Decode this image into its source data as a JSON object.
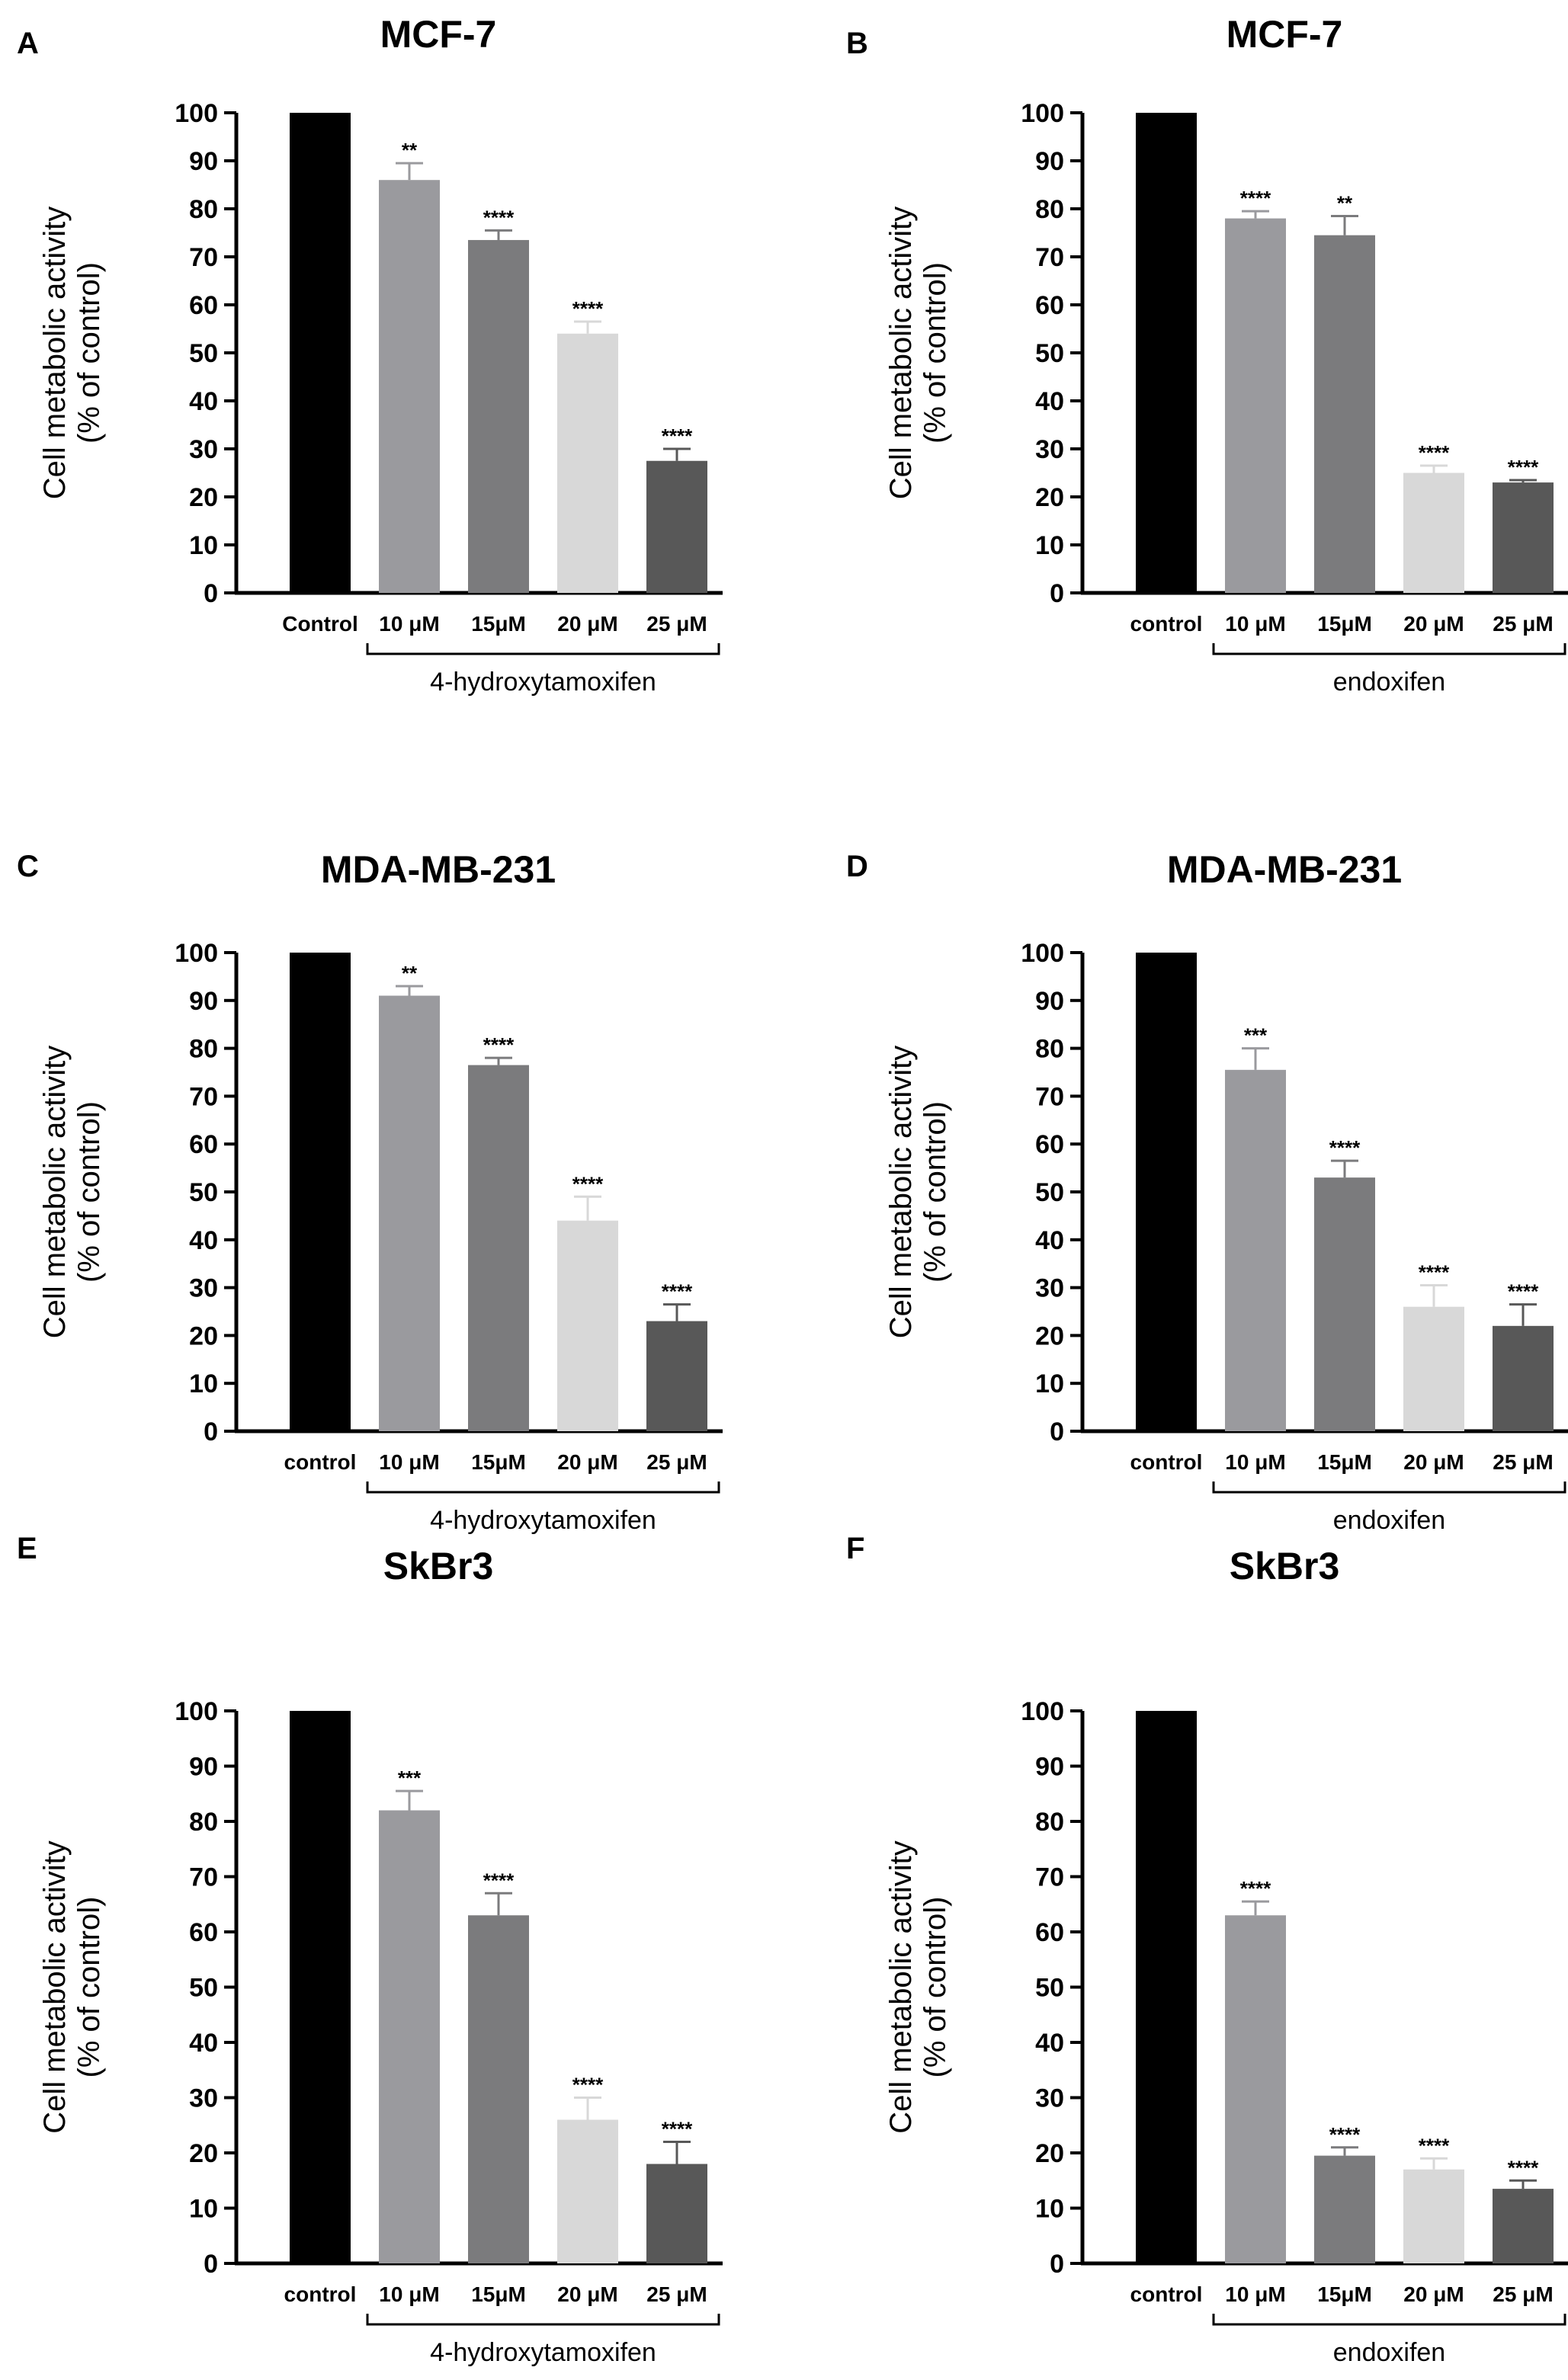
{
  "figure": {
    "y_label_line1": "Cell metabolic activity",
    "y_label_line2": "(% of control)"
  },
  "chart_data": [
    {
      "panel": "A",
      "type": "bar",
      "title": "MCF-7",
      "ylim": [
        0,
        100
      ],
      "yticks": [
        0,
        10,
        20,
        30,
        40,
        50,
        60,
        70,
        80,
        90,
        100
      ],
      "categories": [
        "Control",
        "10 μM",
        "15μM",
        "20 μM",
        "25 μM"
      ],
      "values": [
        100,
        86,
        73.5,
        54,
        27.5
      ],
      "errors": [
        0,
        3.5,
        2,
        2.5,
        2.5
      ],
      "significance": [
        "",
        "**",
        "****",
        "****",
        "****"
      ],
      "colors": [
        "#000000",
        "#9a9a9e",
        "#7b7b7d",
        "#d8d8d8",
        "#585858"
      ],
      "group_label": "4-hydroxytamoxifen"
    },
    {
      "panel": "B",
      "type": "bar",
      "title": "MCF-7",
      "ylim": [
        0,
        100
      ],
      "yticks": [
        0,
        10,
        20,
        30,
        40,
        50,
        60,
        70,
        80,
        90,
        100
      ],
      "categories": [
        "control",
        "10 μM",
        "15μM",
        "20 μM",
        "25 μM"
      ],
      "values": [
        100,
        78,
        74.5,
        25,
        23
      ],
      "errors": [
        0,
        1.5,
        4,
        1.5,
        0.5
      ],
      "significance": [
        "",
        "****",
        "**",
        "****",
        "****"
      ],
      "colors": [
        "#000000",
        "#9a9a9e",
        "#7b7b7d",
        "#d8d8d8",
        "#585858"
      ],
      "group_label": "endoxifen"
    },
    {
      "panel": "C",
      "type": "bar",
      "title": "MDA-MB-231",
      "ylim": [
        0,
        100
      ],
      "yticks": [
        0,
        10,
        20,
        30,
        40,
        50,
        60,
        70,
        80,
        90,
        100
      ],
      "categories": [
        "control",
        "10 μM",
        "15μM",
        "20 μM",
        "25 μM"
      ],
      "values": [
        100,
        91,
        76.5,
        44,
        23
      ],
      "errors": [
        0,
        2,
        1.5,
        5,
        3.5
      ],
      "significance": [
        "",
        "**",
        "****",
        "****",
        "****"
      ],
      "colors": [
        "#000000",
        "#9a9a9e",
        "#7b7b7d",
        "#d8d8d8",
        "#585858"
      ],
      "group_label": "4-hydroxytamoxifen"
    },
    {
      "panel": "D",
      "type": "bar",
      "title": "MDA-MB-231",
      "ylim": [
        0,
        100
      ],
      "yticks": [
        0,
        10,
        20,
        30,
        40,
        50,
        60,
        70,
        80,
        90,
        100
      ],
      "categories": [
        "control",
        "10 μM",
        "15μM",
        "20 μM",
        "25 μM"
      ],
      "values": [
        100,
        75.5,
        53,
        26,
        22
      ],
      "errors": [
        0,
        4.5,
        3.5,
        4.5,
        4.5
      ],
      "significance": [
        "",
        "***",
        "****",
        "****",
        "****"
      ],
      "colors": [
        "#000000",
        "#9a9a9e",
        "#7b7b7d",
        "#d8d8d8",
        "#585858"
      ],
      "group_label": "endoxifen"
    },
    {
      "panel": "E",
      "type": "bar",
      "title": "SkBr3",
      "ylim": [
        0,
        100
      ],
      "yticks": [
        0,
        10,
        20,
        30,
        40,
        50,
        60,
        70,
        80,
        90,
        100
      ],
      "categories": [
        "control",
        "10 μM",
        "15μM",
        "20 μM",
        "25 μM"
      ],
      "values": [
        100,
        82,
        63,
        26,
        18
      ],
      "errors": [
        0,
        3.5,
        4,
        4,
        4
      ],
      "significance": [
        "",
        "***",
        "****",
        "****",
        "****"
      ],
      "colors": [
        "#000000",
        "#9a9a9e",
        "#7b7b7d",
        "#d8d8d8",
        "#585858"
      ],
      "group_label": "4-hydroxytamoxifen"
    },
    {
      "panel": "F",
      "type": "bar",
      "title": "SkBr3",
      "ylim": [
        0,
        100
      ],
      "yticks": [
        0,
        10,
        20,
        30,
        40,
        50,
        60,
        70,
        80,
        90,
        100
      ],
      "categories": [
        "control",
        "10 μM",
        "15μM",
        "20 μM",
        "25 μM"
      ],
      "values": [
        100,
        63,
        19.5,
        17,
        13.5
      ],
      "errors": [
        0,
        2.5,
        1.5,
        2,
        1.5
      ],
      "significance": [
        "",
        "****",
        "****",
        "****",
        "****"
      ],
      "colors": [
        "#000000",
        "#9a9a9e",
        "#7b7b7d",
        "#d8d8d8",
        "#585858"
      ],
      "group_label": "endoxifen"
    }
  ]
}
